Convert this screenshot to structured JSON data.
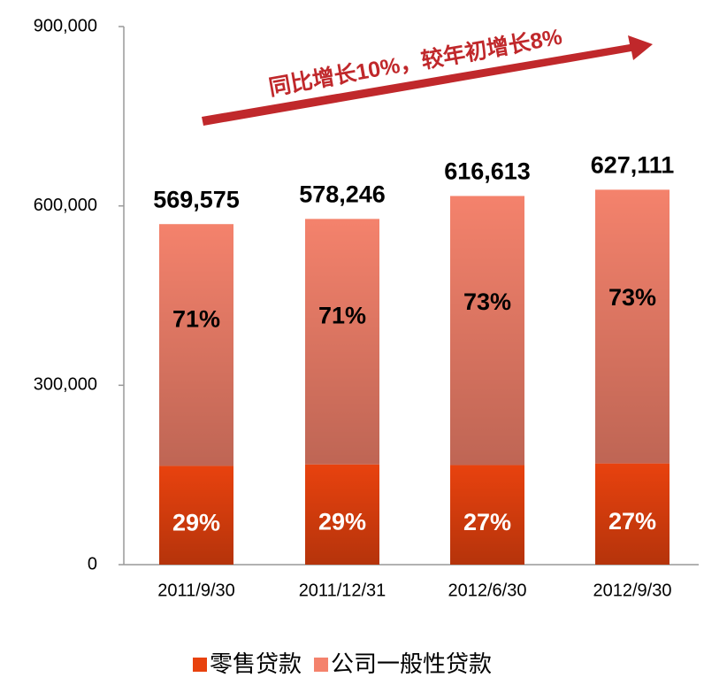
{
  "chart_data": {
    "type": "stacked_bar",
    "categories": [
      "2011/9/30",
      "2011/12/31",
      "2012/6/30",
      "2012/9/30"
    ],
    "series": [
      {
        "name": "零售贷款",
        "color": "#e8420e",
        "values": [
          165177,
          167691,
          166486,
          169320
        ],
        "share_labels": [
          "29%",
          "29%",
          "27%",
          "27%"
        ]
      },
      {
        "name": "公司一般性贷款",
        "color": "#f4826c",
        "values": [
          404398,
          410555,
          450127,
          457791
        ],
        "share_labels": [
          "71%",
          "71%",
          "73%",
          "73%"
        ]
      }
    ],
    "totals": [
      569575,
      578246,
      616613,
      627111
    ],
    "total_labels": [
      "569,575",
      "578,246",
      "616,613",
      "627,111"
    ],
    "annotation": "同比增长10%，较年初增长8%",
    "ylim": [
      0,
      900000
    ],
    "yticks": [
      0,
      {
        "value": 300000,
        "label": "300,000"
      },
      {
        "value": 600000,
        "label": "600,000"
      },
      {
        "value": 900000,
        "label": "900,000"
      }
    ],
    "legend": "bottom"
  }
}
